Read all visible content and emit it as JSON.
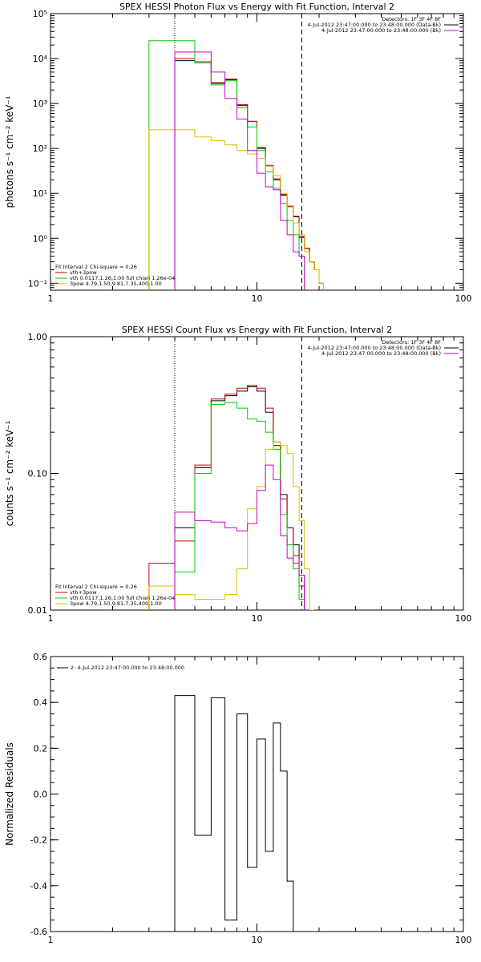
{
  "chart_data": [
    {
      "type": "line",
      "title": "SPEX HESSI Photon Flux vs Energy with Fit Function, Interval 2",
      "ylabel": "photons s⁻¹ cm⁻² keV⁻¹",
      "xscale": "log",
      "yscale": "log",
      "xlim": [
        1,
        100
      ],
      "ylim": [
        0.07,
        100000
      ],
      "x_ticks": [
        1,
        10,
        100
      ],
      "x_tick_labels": [
        "1",
        "10",
        "100"
      ],
      "y_ticks": [
        0.1,
        1,
        10,
        100,
        1000,
        10000,
        100000
      ],
      "y_tick_labels": [
        "10⁻¹",
        "10⁰",
        "10¹",
        "10²",
        "10³",
        "10⁴",
        "10⁵"
      ],
      "vlines": [
        {
          "x": 4.0,
          "style": "dotted"
        },
        {
          "x": 16.5,
          "style": "dashed"
        }
      ],
      "legend_top_right": [
        {
          "text": "Detectors: 1F 3F 4F 8F",
          "color": "#000000"
        },
        {
          "text": "4-Jul-2012 23:47:00.000 to 23:48:00.000 (Data-Bk)",
          "color": "#000000"
        },
        {
          "text": "4-Jul-2012 23:47:00.000 to 23:48:00.000 (Bk)",
          "color": "#cc00cc"
        }
      ],
      "legend_bottom_left": [
        {
          "text": "Fit Interval 2   Chi-square = 0.26",
          "color": "#000000"
        },
        {
          "text": "vth+3pow",
          "color": "#cc0000"
        },
        {
          "text": "vth 0.0117,1.26,1.00  full chian 1.26e-04",
          "color": "#00cc00"
        },
        {
          "text": "3pow 4.79,1.50,9.81,7.35,400,1.00",
          "color": "#ddbb00"
        }
      ],
      "series": [
        {
          "color": "#000000",
          "x": [
            4,
            5,
            6,
            7,
            8,
            9,
            10,
            11,
            12,
            13,
            14,
            15,
            16,
            17,
            18,
            19,
            20
          ],
          "values": [
            9000,
            8000,
            2800,
            3400,
            900,
            400,
            100,
            40,
            20,
            9,
            5,
            3,
            1.05,
            0.6,
            0.3,
            0.2,
            0.1
          ]
        },
        {
          "color": "#cc0000",
          "x": [
            4,
            5,
            6,
            7,
            8,
            9,
            10,
            11,
            12,
            13,
            14,
            15,
            16,
            17,
            18,
            19,
            20
          ],
          "values": [
            10000,
            8500,
            2900,
            3500,
            950,
            400,
            105,
            42,
            21,
            9.5,
            5.2,
            3.1,
            1.1,
            0.6,
            0.3,
            0.2,
            0.1
          ]
        },
        {
          "color": "#00cc00",
          "x": [
            3,
            4,
            5,
            6,
            7,
            8,
            9,
            10,
            11,
            12,
            13,
            14,
            15,
            16
          ],
          "values": [
            25000,
            25000,
            8000,
            2600,
            3200,
            800,
            300,
            90,
            30,
            13,
            6,
            2.5,
            1.2,
            0.4
          ]
        },
        {
          "color": "#ddbb00",
          "x": [
            3,
            4,
            5,
            6,
            7,
            8,
            9,
            10,
            11,
            12,
            13,
            14,
            15,
            16,
            17,
            18,
            19,
            20
          ],
          "values": [
            260,
            260,
            180,
            150,
            120,
            90,
            75,
            60,
            40,
            25,
            10,
            5,
            2.2,
            1.2,
            0.5,
            0.3,
            0.2,
            0.1
          ]
        },
        {
          "color": "#cc00cc",
          "x": [
            4,
            5,
            6,
            7,
            8,
            9,
            10,
            11,
            12,
            13,
            14,
            15,
            16
          ],
          "values": [
            14000,
            14000,
            5000,
            1300,
            450,
            90,
            28,
            14,
            12,
            2.5,
            1.2,
            0.5,
            0.4
          ]
        }
      ]
    },
    {
      "type": "line",
      "title": "SPEX HESSI Count Flux vs Energy with Fit Function, Interval 2",
      "ylabel": "counts s⁻¹ cm⁻² keV⁻¹",
      "xscale": "log",
      "yscale": "log",
      "xlim": [
        1,
        100
      ],
      "ylim": [
        0.01,
        1.0
      ],
      "x_ticks": [
        1,
        10,
        100
      ],
      "x_tick_labels": [
        "1",
        "10",
        "100"
      ],
      "y_ticks": [
        0.01,
        0.1,
        1.0
      ],
      "y_tick_labels": [
        "0.01",
        "0.10",
        "1.00"
      ],
      "vlines": [
        {
          "x": 4.0,
          "style": "dotted"
        },
        {
          "x": 16.5,
          "style": "dashed"
        }
      ],
      "legend_top_right": [
        {
          "text": "Detectors: 1F 3F 4F 8F",
          "color": "#000000"
        },
        {
          "text": "4-Jul-2012 23:47:00.000 to 23:48:00.000 (Data-Bk)",
          "color": "#000000"
        },
        {
          "text": "4-Jul-2012 23:47:00.000 to 23:48:00.000 (Bk)",
          "color": "#cc00cc"
        }
      ],
      "legend_bottom_left": [
        {
          "text": "Fit Interval 2   Chi-square = 0.26",
          "color": "#000000"
        },
        {
          "text": "vth+3pow",
          "color": "#cc0000"
        },
        {
          "text": "vth 0.0117,1.26,1.00  full chian 1.26e-04",
          "color": "#00cc00"
        },
        {
          "text": "3pow 4.79,1.50,9.81,7.35,400,1.00",
          "color": "#ddbb00"
        }
      ],
      "series": [
        {
          "color": "#000000",
          "x": [
            4,
            5,
            6,
            7,
            8,
            9,
            10,
            11,
            12,
            13,
            14,
            15,
            16
          ],
          "values": [
            0.04,
            0.11,
            0.34,
            0.37,
            0.4,
            0.43,
            0.4,
            0.28,
            0.16,
            0.07,
            0.04,
            0.03,
            0.018
          ]
        },
        {
          "color": "#cc0000",
          "x": [
            3,
            4,
            5,
            6,
            7,
            8,
            9,
            10,
            11,
            12,
            13,
            14,
            15,
            16
          ],
          "values": [
            0.022,
            0.032,
            0.115,
            0.35,
            0.38,
            0.42,
            0.44,
            0.42,
            0.3,
            0.17,
            0.065,
            0.04,
            0.025,
            0.015
          ]
        },
        {
          "color": "#00cc00",
          "x": [
            4,
            5,
            6,
            7,
            8,
            9,
            10,
            11,
            12,
            13,
            14,
            15,
            16
          ],
          "values": [
            0.019,
            0.1,
            0.32,
            0.33,
            0.3,
            0.25,
            0.24,
            0.2,
            0.15,
            0.05,
            0.03,
            0.02,
            0.012
          ]
        },
        {
          "color": "#ddbb00",
          "x": [
            3,
            4,
            5,
            6,
            7,
            8,
            9,
            10,
            11,
            12,
            13,
            14,
            15,
            16,
            17,
            18
          ],
          "values": [
            0.015,
            0.013,
            0.012,
            0.012,
            0.013,
            0.02,
            0.055,
            0.08,
            0.15,
            0.17,
            0.16,
            0.14,
            0.08,
            0.045,
            0.02,
            0.01
          ]
        },
        {
          "color": "#cc00cc",
          "x": [
            4,
            5,
            6,
            7,
            8,
            9,
            10,
            11,
            12,
            13,
            14,
            15,
            16
          ],
          "values": [
            0.052,
            0.045,
            0.044,
            0.04,
            0.038,
            0.043,
            0.075,
            0.115,
            0.09,
            0.035,
            0.024,
            0.022,
            0.018
          ]
        }
      ]
    },
    {
      "type": "line",
      "title": "",
      "ylabel": "Normalized Residuals",
      "xscale": "log",
      "yscale": "linear",
      "xlim": [
        1,
        100
      ],
      "ylim": [
        -0.6,
        0.6
      ],
      "x_ticks": [
        1,
        10,
        100
      ],
      "x_tick_labels": [
        "1",
        "10",
        "100"
      ],
      "y_ticks": [
        -0.6,
        -0.4,
        -0.2,
        0.0,
        0.2,
        0.4,
        0.6
      ],
      "y_tick_labels": [
        "-0.6",
        "-0.4",
        "-0.2",
        "0.0",
        "0.2",
        "0.4",
        "0.6"
      ],
      "legend_top_left": [
        {
          "text": "2:  4-Jul-2012 23:47:00.000 to 23:48:00.000",
          "color": "#000000"
        }
      ],
      "series": [
        {
          "color": "#000000",
          "x": [
            4,
            5,
            6,
            7,
            8,
            9,
            10,
            11,
            12,
            13,
            14,
            15,
            16
          ],
          "values": [
            0.43,
            -0.18,
            0.42,
            -0.55,
            0.35,
            -0.32,
            0.24,
            -0.25,
            0.31,
            0.1,
            -0.38,
            -0.6,
            -0.6
          ]
        }
      ]
    }
  ]
}
